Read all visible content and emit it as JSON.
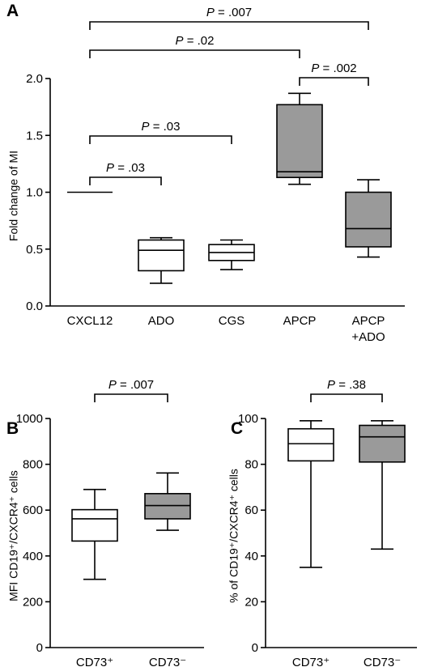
{
  "chart_data": [
    {
      "panel": "A",
      "type": "box",
      "ylabel": "Fold change of MI",
      "ylim": [
        0,
        2.0
      ],
      "yticks": [
        "0.0",
        "0.5",
        "1.0",
        "1.5",
        "2.0"
      ],
      "categories": [
        {
          "label": [
            "CXCL12"
          ],
          "fill": "white",
          "min": 1.0,
          "q1": 1.0,
          "median": 1.0,
          "q3": 1.0,
          "max": 1.0
        },
        {
          "label": [
            "ADO"
          ],
          "fill": "white",
          "min": 0.2,
          "q1": 0.31,
          "median": 0.49,
          "q3": 0.58,
          "max": 0.6
        },
        {
          "label": [
            "CGS"
          ],
          "fill": "white",
          "min": 0.32,
          "q1": 0.4,
          "median": 0.47,
          "q3": 0.54,
          "max": 0.58
        },
        {
          "label": [
            "APCP"
          ],
          "fill": "grey",
          "min": 1.07,
          "q1": 1.13,
          "median": 1.18,
          "q3": 1.77,
          "max": 1.87
        },
        {
          "label": [
            "APCP",
            "+ADO"
          ],
          "fill": "grey",
          "min": 0.43,
          "q1": 0.52,
          "median": 0.68,
          "q3": 1.0,
          "max": 1.11
        }
      ],
      "comparisons": [
        {
          "from": 0,
          "to": 4,
          "p_label": "P",
          "p_value": "= .007"
        },
        {
          "from": 0,
          "to": 3,
          "p_label": "P",
          "p_value": "= .02"
        },
        {
          "from": 3,
          "to": 4,
          "p_label": "P",
          "p_value": "= .002"
        },
        {
          "from": 0,
          "to": 2,
          "p_label": "P",
          "p_value": "= .03"
        },
        {
          "from": 0,
          "to": 1,
          "p_label": "P",
          "p_value": "= .03"
        }
      ]
    },
    {
      "panel": "B",
      "type": "box",
      "ylabel": "MFI CD19⁺/CXCR4⁺ cells",
      "ylim": [
        0,
        1000
      ],
      "yticks": [
        "0",
        "200",
        "400",
        "600",
        "800",
        "1000"
      ],
      "categories": [
        {
          "label": [
            "CD73⁺"
          ],
          "fill": "white",
          "min": 298,
          "q1": 465,
          "median": 562,
          "q3": 602,
          "max": 690
        },
        {
          "label": [
            "CD73⁻"
          ],
          "fill": "grey",
          "min": 512,
          "q1": 562,
          "median": 620,
          "q3": 672,
          "max": 762
        }
      ],
      "comparisons": [
        {
          "from": 0,
          "to": 1,
          "p_label": "P",
          "p_value": "= .007"
        }
      ]
    },
    {
      "panel": "C",
      "type": "box",
      "ylabel": "% of CD19⁺/CXCR4⁺ cells",
      "ylim": [
        0,
        100
      ],
      "yticks": [
        "0",
        "20",
        "40",
        "60",
        "80",
        "100"
      ],
      "categories": [
        {
          "label": [
            "CD73⁺"
          ],
          "fill": "white",
          "min": 35,
          "q1": 81.5,
          "median": 89,
          "q3": 95.5,
          "max": 99
        },
        {
          "label": [
            "CD73⁻"
          ],
          "fill": "grey",
          "min": 43,
          "q1": 81,
          "median": 92,
          "q3": 97,
          "max": 99
        }
      ],
      "comparisons": [
        {
          "from": 0,
          "to": 1,
          "p_label": "P",
          "p_value": "= .38"
        }
      ]
    }
  ],
  "colors": {
    "box_grey": "#9a9a9a",
    "box_white": "#ffffff",
    "ink": "#000000"
  }
}
